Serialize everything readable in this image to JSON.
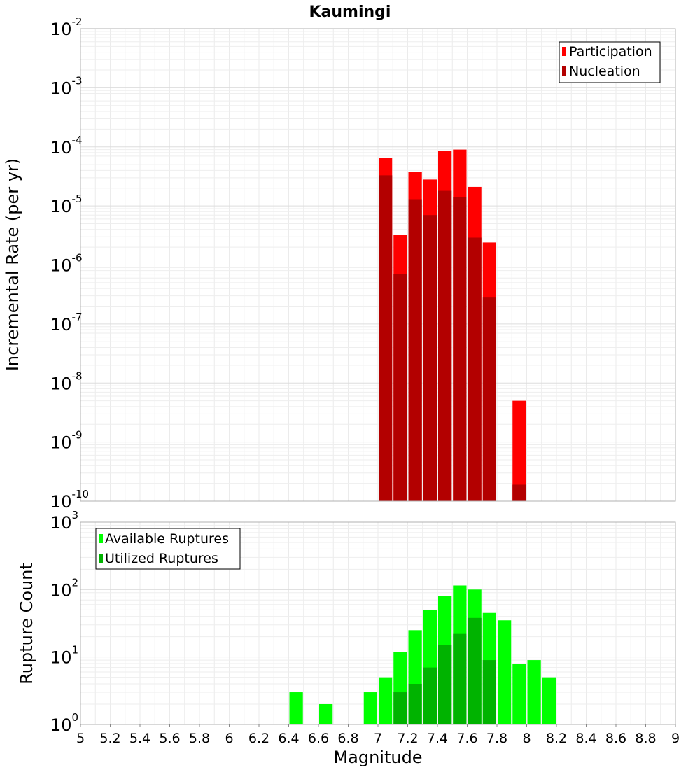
{
  "chart_data": [
    {
      "type": "bar",
      "title": "Kaumingi",
      "ylabel": "Incremental Rate (per yr)",
      "xlabel": "",
      "y_scale": "log",
      "ylim_exp": [
        -10,
        -2
      ],
      "y_tick_exponents": [
        -10,
        -9,
        -8,
        -7,
        -6,
        -5,
        -4,
        -3,
        -2
      ],
      "xlim": [
        5,
        9
      ],
      "bin_width": 0.1,
      "grid": true,
      "legend_placement": "top-right",
      "x": [
        7.0,
        7.1,
        7.2,
        7.3,
        7.4,
        7.5,
        7.6,
        7.7,
        7.9
      ],
      "series": [
        {
          "name": "Participation",
          "color": "#ff0000",
          "values": [
            6.5e-05,
            3.2e-06,
            3.8e-05,
            2.8e-05,
            8.5e-05,
            9e-05,
            2.1e-05,
            2.4e-06,
            5e-09
          ]
        },
        {
          "name": "Nucleation",
          "color": "#b30000",
          "values": [
            3.3e-05,
            7e-07,
            1.3e-05,
            7e-06,
            1.8e-05,
            1.4e-05,
            2.9e-06,
            2.8e-07,
            1.9e-10
          ]
        }
      ]
    },
    {
      "type": "bar",
      "title": "",
      "ylabel": "Rupture Count",
      "xlabel": "Magnitude",
      "y_scale": "log",
      "ylim_exp": [
        0,
        3
      ],
      "y_tick_exponents": [
        0,
        1,
        2,
        3
      ],
      "xlim": [
        5,
        9
      ],
      "bin_width": 0.1,
      "x_ticks": [
        "5",
        "5.2",
        "5.4",
        "5.6",
        "5.8",
        "6",
        "6.2",
        "6.4",
        "6.6",
        "6.8",
        "7",
        "7.2",
        "7.4",
        "7.6",
        "7.8",
        "8",
        "8.2",
        "8.4",
        "8.6",
        "8.8",
        "9"
      ],
      "grid": true,
      "legend_placement": "top-left",
      "series": [
        {
          "name": "Available Ruptures",
          "color": "#00ff00",
          "x": [
            6.4,
            6.6,
            6.7,
            6.9,
            7.0,
            7.1,
            7.2,
            7.3,
            7.4,
            7.5,
            7.6,
            7.7,
            7.8,
            7.9,
            8.0,
            8.1
          ],
          "values": [
            3,
            2,
            1,
            3,
            5,
            12,
            25,
            50,
            80,
            115,
            100,
            45,
            35,
            8,
            9,
            5
          ]
        },
        {
          "name": "Utilized Ruptures",
          "color": "#00b300",
          "x": [
            7.0,
            7.1,
            7.2,
            7.3,
            7.4,
            7.5,
            7.6,
            7.7,
            7.9
          ],
          "values": [
            1,
            3,
            4,
            7,
            15,
            22,
            38,
            9,
            1
          ]
        }
      ]
    }
  ]
}
